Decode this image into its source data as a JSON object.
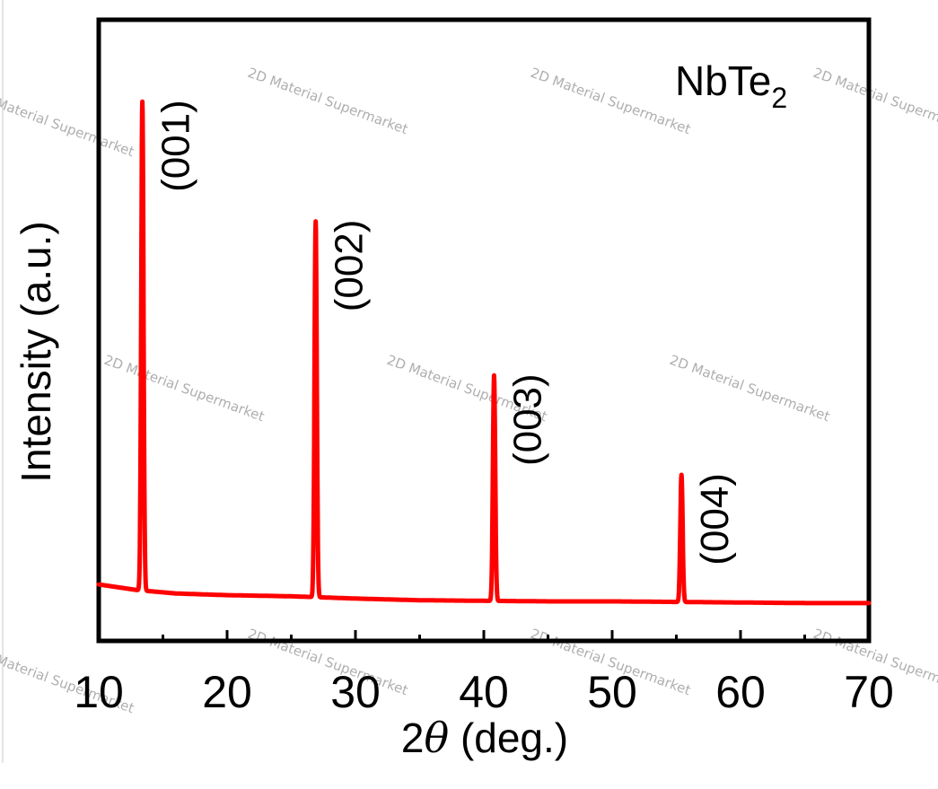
{
  "chart_data": {
    "type": "line",
    "title": "",
    "sample_label": "NbTe",
    "sample_subscript": "2",
    "xlabel_prefix": "2",
    "xlabel_symbol": "θ",
    "xlabel_suffix": " (deg.)",
    "ylabel": "Intensity (a.u.)",
    "xlim": [
      10,
      70
    ],
    "ylim": [
      -10,
      100
    ],
    "xticks": [
      "10",
      "20",
      "30",
      "40",
      "50",
      "60",
      "70"
    ],
    "grid": false,
    "legend": "none",
    "series": [
      {
        "color": "#ff0000",
        "baseline": [
          [
            10,
            0
          ],
          [
            13,
            -1
          ],
          [
            16,
            -1.6
          ],
          [
            20,
            -1.9
          ],
          [
            25,
            -2.1
          ],
          [
            30,
            -2.5
          ],
          [
            35,
            -2.8
          ],
          [
            40,
            -2.9
          ],
          [
            45,
            -3.0
          ],
          [
            50,
            -3.0
          ],
          [
            55,
            -3.1
          ],
          [
            60,
            -3.2
          ],
          [
            65,
            -3.3
          ],
          [
            70,
            -3.3
          ]
        ],
        "peaks": [
          {
            "x": 13.4,
            "y": 85.5,
            "label": "(001)"
          },
          {
            "x": 26.9,
            "y": 64.3,
            "label": "(002)"
          },
          {
            "x": 40.8,
            "y": 37.0,
            "label": "(003)"
          },
          {
            "x": 55.4,
            "y": 19.4,
            "label": "(004)"
          }
        ]
      }
    ]
  },
  "watermark_text": "2D Material Supermarket"
}
